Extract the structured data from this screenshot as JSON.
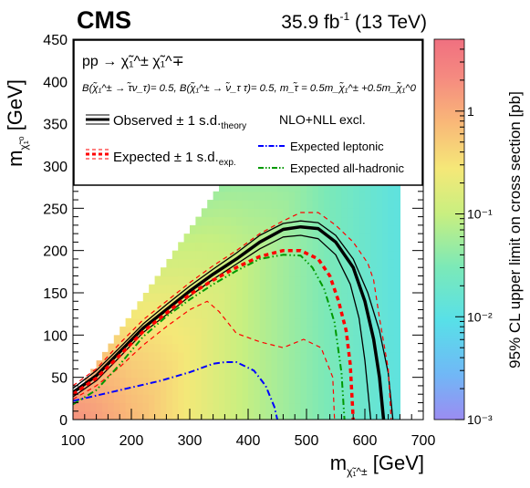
{
  "header": {
    "experiment": "CMS",
    "lumi_prefix": "35.9 fb",
    "lumi_exp": "-1",
    "lumi_suffix": " (13 TeV)"
  },
  "legend": {
    "process_line": "pp → χ̃₁^± χ̃₁^∓",
    "br_line": "B(χ̃₁^± → τ̃ν_τ)= 0.5, B(χ̃₁^± → ν̃_τ τ)= 0.5, m_τ̃ = 0.5m_χ̃₁^± +0.5m_χ̃₁^0",
    "observed_main": "Observed ± 1 s.d.",
    "observed_sub": "theory",
    "expected_main": "Expected ± 1 s.d.",
    "expected_sub": "exp.",
    "xsec_note": "NLO+NLL excl.",
    "leptonic": "Expected leptonic",
    "hadronic": "Expected all-hadronic"
  },
  "colorbar": {
    "label": "95% CL upper limit on cross section [pb]",
    "ticks": [
      {
        "value": 1,
        "label": "1"
      },
      {
        "value": 0.1,
        "label": "10⁻¹"
      },
      {
        "value": 0.01,
        "label": "10⁻²"
      },
      {
        "value": 0.001,
        "label": "10⁻³"
      }
    ]
  },
  "colors": {
    "observed": "#000000",
    "expected": "#ff0000",
    "leptonic": "#0000ff",
    "hadronic": "#009900"
  },
  "chart_data": {
    "type": "heatmap",
    "xlabel": "m_χ̃₁^± [GeV]",
    "ylabel": "m_χ̃₁^0 [GeV]",
    "xlim": [
      100,
      700
    ],
    "ylim": [
      0,
      450
    ],
    "zlim": [
      0.001,
      5
    ],
    "zscale": "log",
    "x_ticks": [
      100,
      200,
      300,
      400,
      500,
      600,
      700
    ],
    "y_ticks": [
      0,
      50,
      100,
      150,
      200,
      250,
      300,
      350,
      400,
      450
    ],
    "heatmap": {
      "domain": "m_LSP <= m_chargino - 75",
      "x_step": 10,
      "y_step": 10,
      "xsec_anchor_points": [
        {
          "x": 100,
          "xsec_pb": 4.0
        },
        {
          "x": 200,
          "xsec_pb": 0.8
        },
        {
          "x": 300,
          "xsec_pb": 0.25
        },
        {
          "x": 400,
          "xsec_pb": 0.09
        },
        {
          "x": 500,
          "xsec_pb": 0.04
        },
        {
          "x": 600,
          "xsec_pb": 0.018
        },
        {
          "x": 650,
          "xsec_pb": 0.012
        }
      ]
    },
    "contours": [
      {
        "name": "observed",
        "points": [
          [
            100,
            32
          ],
          [
            140,
            52
          ],
          [
            180,
            80
          ],
          [
            220,
            108
          ],
          [
            260,
            130
          ],
          [
            300,
            152
          ],
          [
            340,
            172
          ],
          [
            380,
            190
          ],
          [
            420,
            210
          ],
          [
            460,
            225
          ],
          [
            490,
            228
          ],
          [
            520,
            226
          ],
          [
            550,
            210
          ],
          [
            580,
            180
          ],
          [
            600,
            140
          ],
          [
            615,
            95
          ],
          [
            625,
            50
          ],
          [
            632,
            0
          ]
        ]
      },
      {
        "name": "observed_plus1sd",
        "points": [
          [
            100,
            37
          ],
          [
            140,
            58
          ],
          [
            180,
            85
          ],
          [
            220,
            113
          ],
          [
            260,
            136
          ],
          [
            300,
            158
          ],
          [
            340,
            178
          ],
          [
            380,
            197
          ],
          [
            420,
            218
          ],
          [
            460,
            232
          ],
          [
            490,
            235
          ],
          [
            520,
            233
          ],
          [
            550,
            218
          ],
          [
            580,
            190
          ],
          [
            605,
            150
          ],
          [
            625,
            105
          ],
          [
            640,
            55
          ],
          [
            648,
            0
          ]
        ]
      },
      {
        "name": "observed_minus1sd",
        "points": [
          [
            100,
            27
          ],
          [
            140,
            46
          ],
          [
            180,
            74
          ],
          [
            220,
            103
          ],
          [
            260,
            124
          ],
          [
            300,
            146
          ],
          [
            340,
            166
          ],
          [
            380,
            184
          ],
          [
            420,
            202
          ],
          [
            460,
            216
          ],
          [
            490,
            218
          ],
          [
            520,
            214
          ],
          [
            550,
            195
          ],
          [
            575,
            160
          ],
          [
            590,
            120
          ],
          [
            600,
            70
          ],
          [
            610,
            0
          ]
        ]
      },
      {
        "name": "expected",
        "points": [
          [
            100,
            30
          ],
          [
            140,
            49
          ],
          [
            180,
            76
          ],
          [
            220,
            104
          ],
          [
            260,
            126
          ],
          [
            300,
            148
          ],
          [
            340,
            165
          ],
          [
            380,
            180
          ],
          [
            420,
            193
          ],
          [
            460,
            200
          ],
          [
            490,
            200
          ],
          [
            520,
            190
          ],
          [
            540,
            170
          ],
          [
            555,
            140
          ],
          [
            568,
            105
          ],
          [
            575,
            65
          ],
          [
            580,
            0
          ]
        ]
      },
      {
        "name": "expected_plus1sd",
        "points": [
          [
            100,
            40
          ],
          [
            140,
            60
          ],
          [
            180,
            90
          ],
          [
            220,
            118
          ],
          [
            260,
            140
          ],
          [
            300,
            162
          ],
          [
            340,
            182
          ],
          [
            380,
            200
          ],
          [
            420,
            220
          ],
          [
            460,
            235
          ],
          [
            490,
            245
          ],
          [
            520,
            245
          ],
          [
            550,
            230
          ],
          [
            580,
            210
          ],
          [
            605,
            185
          ],
          [
            615,
            165
          ],
          [
            625,
            120
          ],
          [
            640,
            60
          ],
          [
            645,
            0
          ]
        ]
      },
      {
        "name": "expected_minus1sd",
        "points": [
          [
            100,
            24
          ],
          [
            140,
            40
          ],
          [
            180,
            62
          ],
          [
            220,
            88
          ],
          [
            260,
            110
          ],
          [
            300,
            130
          ],
          [
            330,
            140
          ],
          [
            350,
            128
          ],
          [
            380,
            102
          ],
          [
            420,
            92
          ],
          [
            460,
            85
          ],
          [
            495,
            95
          ],
          [
            525,
            85
          ],
          [
            545,
            50
          ],
          [
            548,
            0
          ]
        ]
      },
      {
        "name": "expected_leptonic",
        "points": [
          [
            100,
            22
          ],
          [
            150,
            30
          ],
          [
            200,
            38
          ],
          [
            250,
            46
          ],
          [
            300,
            56
          ],
          [
            340,
            66
          ],
          [
            360,
            68
          ],
          [
            380,
            68
          ],
          [
            410,
            58
          ],
          [
            430,
            40
          ],
          [
            445,
            15
          ],
          [
            450,
            0
          ]
        ]
      },
      {
        "name": "expected_all_hadronic",
        "points": [
          [
            100,
            18
          ],
          [
            140,
            35
          ],
          [
            180,
            65
          ],
          [
            220,
            98
          ],
          [
            260,
            122
          ],
          [
            300,
            142
          ],
          [
            340,
            160
          ],
          [
            380,
            176
          ],
          [
            420,
            190
          ],
          [
            460,
            195
          ],
          [
            490,
            194
          ],
          [
            510,
            180
          ],
          [
            530,
            155
          ],
          [
            548,
            115
          ],
          [
            560,
            55
          ],
          [
            565,
            0
          ]
        ]
      }
    ]
  }
}
